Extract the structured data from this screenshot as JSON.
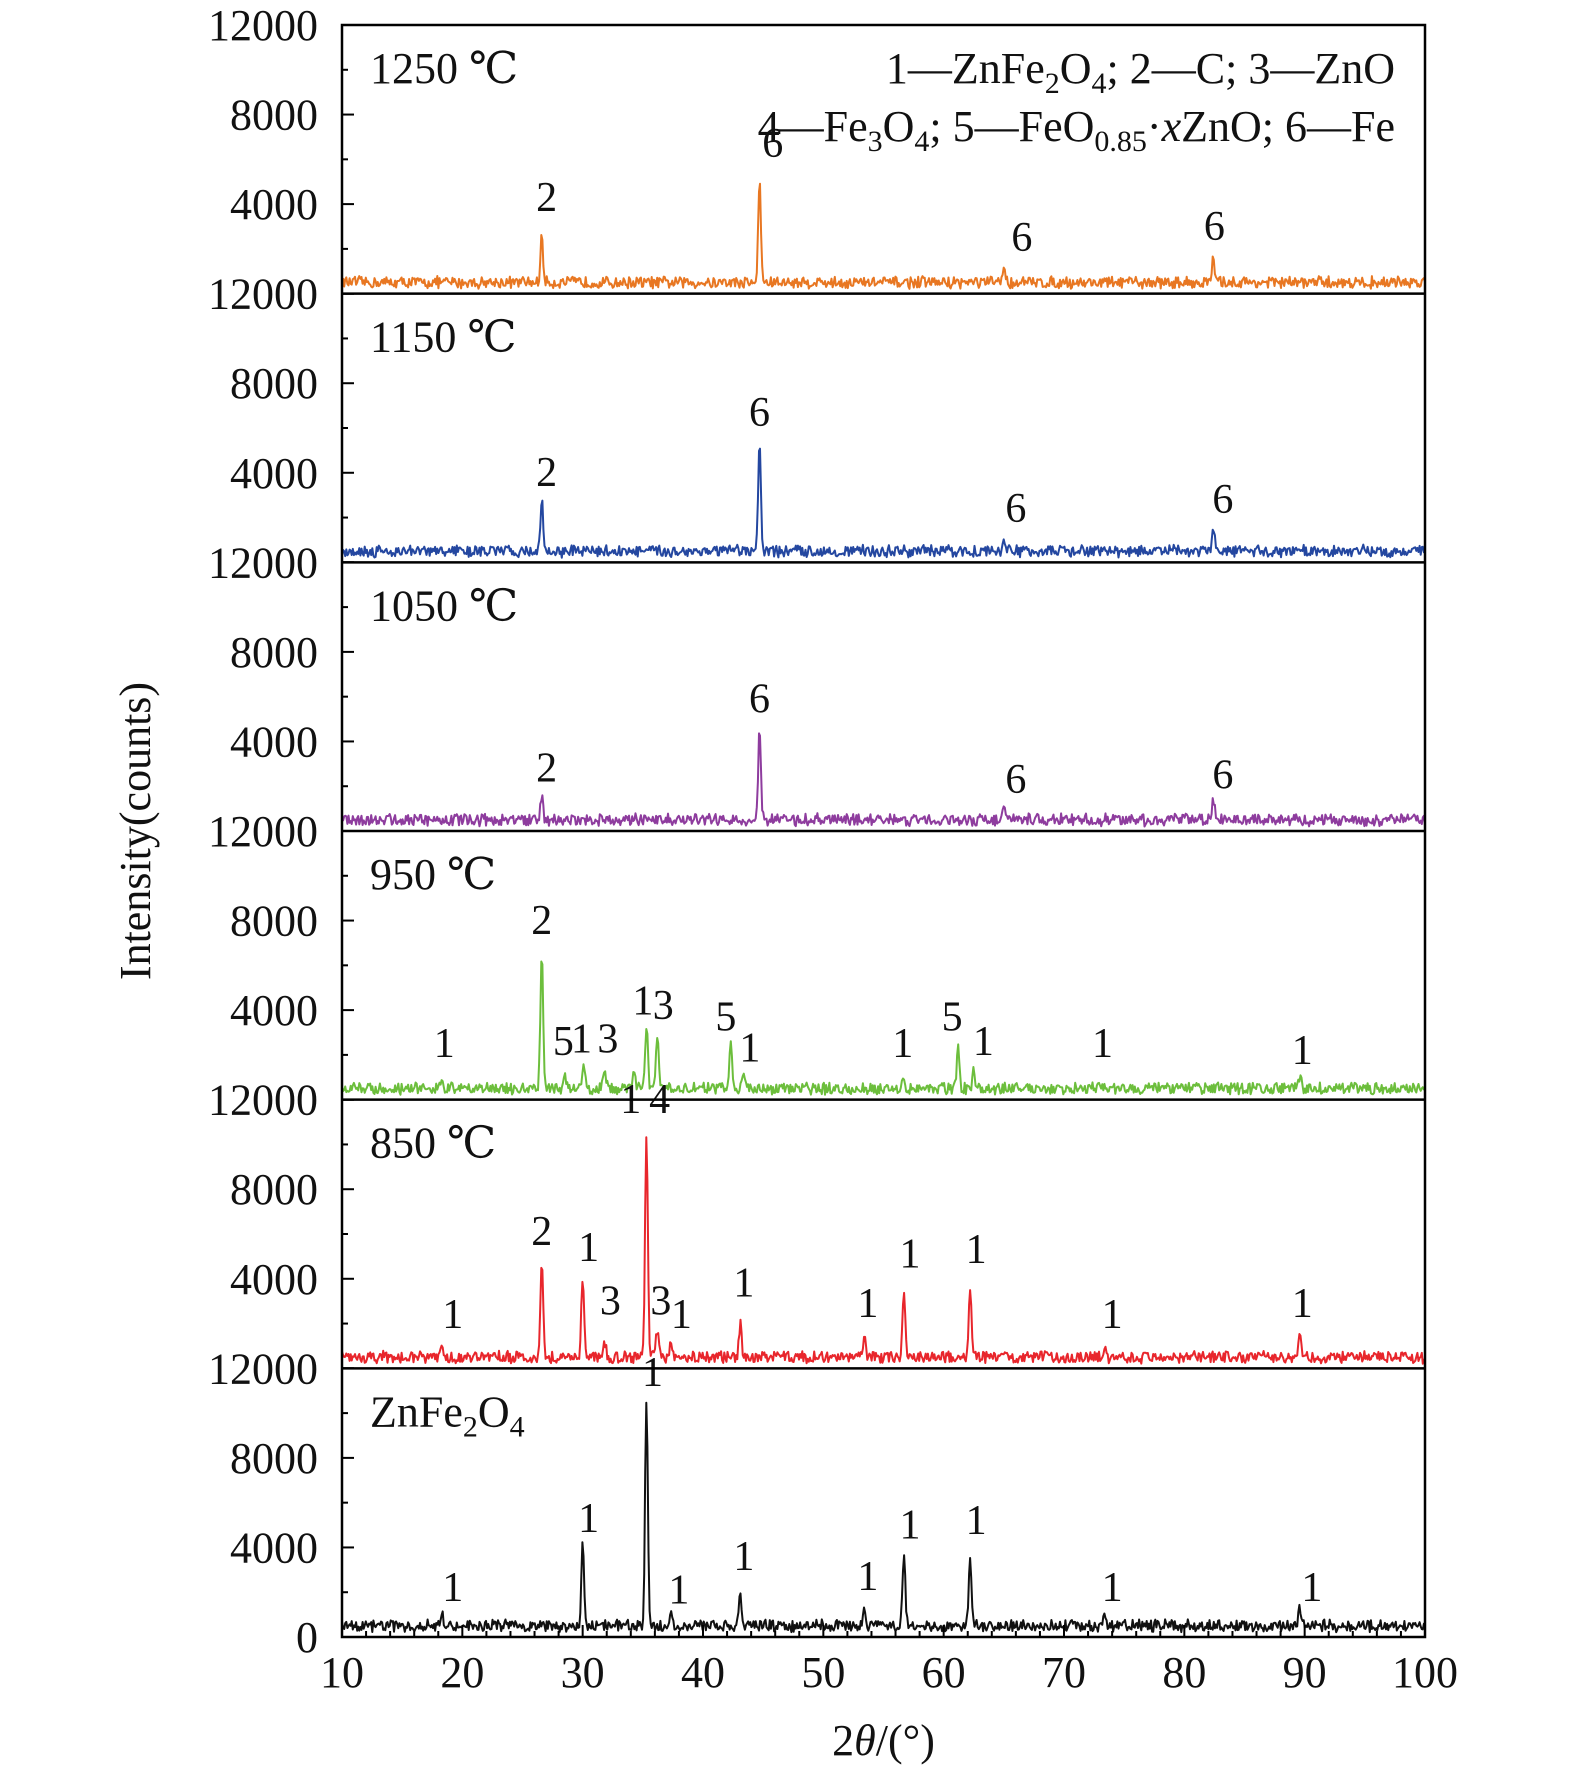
{
  "chart_data": {
    "type": "line",
    "xlabel_prefix": "2",
    "xlabel_var": "θ",
    "xlabel_unit": "/(°)",
    "ylabel": "Intensity(counts)",
    "xlim": [
      10,
      100
    ],
    "ylim": [
      0,
      12000
    ],
    "x_ticks": [
      "10",
      "20",
      "30",
      "40",
      "50",
      "60",
      "70",
      "80",
      "90",
      "100"
    ],
    "y_ticks": [
      "0",
      "4000",
      "8000",
      "12000"
    ],
    "legend": {
      "line1": [
        {
          "text": "1—ZnFe"
        },
        {
          "text": "2",
          "sub": true
        },
        {
          "text": "O"
        },
        {
          "text": "4",
          "sub": true
        },
        {
          "text": "; 2—C; 3—ZnO"
        }
      ],
      "line2": [
        {
          "text": "4—Fe"
        },
        {
          "text": "3",
          "sub": true
        },
        {
          "text": "O"
        },
        {
          "text": "4",
          "sub": true
        },
        {
          "text": "; 5—FeO"
        },
        {
          "text": "0.85",
          "sub": true
        },
        {
          "text": "·"
        },
        {
          "text": "x",
          "italic": true
        },
        {
          "text": "ZnO; 6—Fe"
        }
      ]
    },
    "series": [
      {
        "label": "1250 ℃",
        "color": "#E87722",
        "baseline": 500,
        "noise": 300,
        "peaks": [
          [
            26.6,
            2000
          ],
          [
            44.7,
            4500
          ],
          [
            65.0,
            700
          ],
          [
            82.4,
            1000
          ]
        ],
        "peak_labels": [
          {
            "text": "2",
            "x": 27.0,
            "y": 3700
          },
          {
            "text": "6",
            "x": 45.8,
            "y": 6100
          },
          {
            "text": "6",
            "x": 66.5,
            "y": 1900
          },
          {
            "text": "6",
            "x": 82.5,
            "y": 2400
          }
        ]
      },
      {
        "label": "1150 ℃",
        "color": "#2447A0",
        "baseline": 500,
        "noise": 300,
        "peaks": [
          [
            26.6,
            2200
          ],
          [
            44.7,
            4800
          ],
          [
            65.0,
            600
          ],
          [
            82.4,
            1000
          ]
        ],
        "peak_labels": [
          {
            "text": "2",
            "x": 27.0,
            "y": 3400
          },
          {
            "text": "6",
            "x": 44.7,
            "y": 6100
          },
          {
            "text": "6",
            "x": 66.0,
            "y": 1800
          },
          {
            "text": "6",
            "x": 83.2,
            "y": 2200
          }
        ]
      },
      {
        "label": "1050 ℃",
        "color": "#8E3C9E",
        "baseline": 500,
        "noise": 300,
        "peaks": [
          [
            26.6,
            1000
          ],
          [
            44.7,
            4100
          ],
          [
            65.0,
            600
          ],
          [
            82.4,
            900
          ]
        ],
        "peak_labels": [
          {
            "text": "2",
            "x": 27.0,
            "y": 2200
          },
          {
            "text": "6",
            "x": 44.7,
            "y": 5300
          },
          {
            "text": "6",
            "x": 66.0,
            "y": 1700
          },
          {
            "text": "6",
            "x": 83.2,
            "y": 1900
          }
        ]
      },
      {
        "label": "950 ℃",
        "color": "#6CBE3C",
        "baseline": 500,
        "noise": 300,
        "peaks": [
          [
            18.3,
            200
          ],
          [
            26.6,
            6000
          ],
          [
            28.5,
            800
          ],
          [
            30.1,
            1000
          ],
          [
            31.8,
            800
          ],
          [
            34.3,
            800
          ],
          [
            35.3,
            2800
          ],
          [
            36.2,
            2500
          ],
          [
            42.3,
            2000
          ],
          [
            43.4,
            700
          ],
          [
            56.6,
            600
          ],
          [
            61.2,
            1900
          ],
          [
            62.5,
            800
          ],
          [
            73.2,
            200
          ],
          [
            89.6,
            500
          ]
        ],
        "peak_labels": [
          {
            "text": "1",
            "x": 18.5,
            "y": 1900
          },
          {
            "text": "2",
            "x": 26.6,
            "y": 7400
          },
          {
            "text": "5",
            "x": 28.4,
            "y": 2000
          },
          {
            "text": "1",
            "x": 29.9,
            "y": 2100
          },
          {
            "text": "3",
            "x": 32.1,
            "y": 2100
          },
          {
            "text": "1",
            "x": 35.0,
            "y": 3800
          },
          {
            "text": "3",
            "x": 36.7,
            "y": 3600
          },
          {
            "text": "5",
            "x": 41.9,
            "y": 3100
          },
          {
            "text": "1",
            "x": 43.9,
            "y": 1700
          },
          {
            "text": "1",
            "x": 56.6,
            "y": 1900
          },
          {
            "text": "5",
            "x": 60.7,
            "y": 3100
          },
          {
            "text": "1",
            "x": 63.3,
            "y": 2000
          },
          {
            "text": "1",
            "x": 73.2,
            "y": 1900
          },
          {
            "text": "1",
            "x": 89.8,
            "y": 1600
          }
        ]
      },
      {
        "label": "850 ℃",
        "color": "#E8262C",
        "baseline": 500,
        "noise": 300,
        "peaks": [
          [
            18.3,
            600
          ],
          [
            26.6,
            4300
          ],
          [
            30.0,
            3600
          ],
          [
            31.8,
            700
          ],
          [
            35.3,
            10000
          ],
          [
            36.2,
            1200
          ],
          [
            37.3,
            500
          ],
          [
            43.1,
            1500
          ],
          [
            53.4,
            900
          ],
          [
            56.7,
            3000
          ],
          [
            62.2,
            3200
          ],
          [
            73.4,
            500
          ],
          [
            89.6,
            900
          ]
        ],
        "peak_labels": [
          {
            "text": "1",
            "x": 19.2,
            "y": 1800
          },
          {
            "text": "2",
            "x": 26.6,
            "y": 5500
          },
          {
            "text": "1",
            "x": 30.5,
            "y": 4800
          },
          {
            "text": "3",
            "x": 32.3,
            "y": 2400
          },
          {
            "text": "1",
            "x": 34.0,
            "y": 11400
          },
          {
            "text": "4",
            "x": 36.4,
            "y": 11400
          },
          {
            "text": "3",
            "x": 36.5,
            "y": 2400
          },
          {
            "text": "1",
            "x": 38.2,
            "y": 1800
          },
          {
            "text": "1",
            "x": 43.4,
            "y": 3200
          },
          {
            "text": "1",
            "x": 53.7,
            "y": 2300
          },
          {
            "text": "1",
            "x": 57.2,
            "y": 4500
          },
          {
            "text": "1",
            "x": 62.7,
            "y": 4700
          },
          {
            "text": "1",
            "x": 74.0,
            "y": 1800
          },
          {
            "text": "1",
            "x": 89.8,
            "y": 2300
          }
        ]
      },
      {
        "label_parts": [
          {
            "text": "ZnFe"
          },
          {
            "text": "2",
            "sub": true
          },
          {
            "text": "O"
          },
          {
            "text": "4",
            "sub": true
          }
        ],
        "color": "#111111",
        "baseline": 500,
        "noise": 300,
        "peaks": [
          [
            18.3,
            600
          ],
          [
            30.0,
            3600
          ],
          [
            35.3,
            10000
          ],
          [
            37.3,
            700
          ],
          [
            43.1,
            1500
          ],
          [
            53.4,
            900
          ],
          [
            56.7,
            3000
          ],
          [
            62.2,
            3200
          ],
          [
            73.4,
            500
          ],
          [
            89.6,
            800
          ]
        ],
        "peak_labels": [
          {
            "text": "1",
            "x": 19.2,
            "y": 1600
          },
          {
            "text": "1",
            "x": 30.5,
            "y": 4700
          },
          {
            "text": "1",
            "x": 35.8,
            "y": 11200
          },
          {
            "text": "1",
            "x": 38.0,
            "y": 1500
          },
          {
            "text": "1",
            "x": 43.4,
            "y": 3000
          },
          {
            "text": "1",
            "x": 53.7,
            "y": 2100
          },
          {
            "text": "1",
            "x": 57.2,
            "y": 4400
          },
          {
            "text": "1",
            "x": 62.7,
            "y": 4600
          },
          {
            "text": "1",
            "x": 74.0,
            "y": 1600
          },
          {
            "text": "1",
            "x": 90.6,
            "y": 1600
          }
        ]
      }
    ]
  }
}
